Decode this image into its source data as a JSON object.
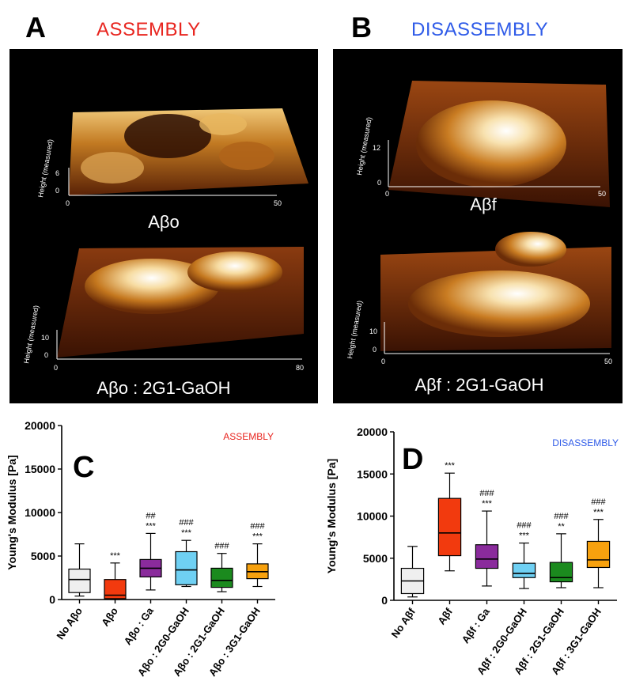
{
  "panels": {
    "A": {
      "letter": "A",
      "title": "ASSEMBLY",
      "title_color": "#e8251f"
    },
    "B": {
      "letter": "B",
      "title": "DISASSEMBLY",
      "title_color": "#2f5be8"
    }
  },
  "afm_images": [
    {
      "id": "a-top",
      "label": "Aβo",
      "height_axis_label": "Height (measured)",
      "height_ticks": [
        "0",
        "6"
      ],
      "x_ticks": [
        "0",
        "50"
      ]
    },
    {
      "id": "a-bottom",
      "label": "Aβo : 2G1-GaOH",
      "height_axis_label": "Height (measured)",
      "height_ticks": [
        "0",
        "10"
      ],
      "x_ticks": [
        "0",
        "80"
      ]
    },
    {
      "id": "b-top",
      "label": "Aβf",
      "height_axis_label": "Height (measured)",
      "height_ticks": [
        "0",
        "12"
      ],
      "x_ticks": [
        "0",
        "50"
      ]
    },
    {
      "id": "b-bottom",
      "label": "Aβf : 2G1-GaOH",
      "height_axis_label": "Height (measured)",
      "height_ticks": [
        "0",
        "10"
      ],
      "x_ticks": [
        "0",
        "50"
      ]
    }
  ],
  "chart_data": [
    {
      "type": "boxplot",
      "panel_letter": "C",
      "tag": "ASSEMBLY",
      "tag_color": "#e8251f",
      "ylabel": "Young's Modulus [Pa]",
      "ylim": [
        0,
        20000
      ],
      "yticks": [
        0,
        5000,
        10000,
        15000,
        20000
      ],
      "categories": [
        "No Aβo",
        "Aβo",
        "Aβo : Ga",
        "Aβo : 2G0-GaOH",
        "Aβo : 2G1-GaOH",
        "Aβo : 3G1-GaOH"
      ],
      "colors": [
        "#efefef",
        "#f23a0e",
        "#8a2b9c",
        "#6fd0f3",
        "#1b8a1e",
        "#f7a10e"
      ],
      "boxes": [
        {
          "min": 400,
          "q1": 800,
          "median": 2300,
          "q3": 3500,
          "max": 6400
        },
        {
          "min": 0,
          "q1": 100,
          "median": 500,
          "q3": 2300,
          "max": 4200
        },
        {
          "min": 1100,
          "q1": 2600,
          "median": 3600,
          "q3": 4600,
          "max": 7600
        },
        {
          "min": 1500,
          "q1": 1700,
          "median": 3400,
          "q3": 5500,
          "max": 6800
        },
        {
          "min": 900,
          "q1": 1400,
          "median": 2200,
          "q3": 3600,
          "max": 5300
        },
        {
          "min": 1500,
          "q1": 2400,
          "median": 3200,
          "q3": 4100,
          "max": 6400
        }
      ],
      "annotations": [
        {
          "index": 1,
          "lines": [
            "***"
          ]
        },
        {
          "index": 2,
          "lines": [
            "##",
            "***"
          ]
        },
        {
          "index": 3,
          "lines": [
            "###",
            "***"
          ]
        },
        {
          "index": 4,
          "lines": [
            "###"
          ]
        },
        {
          "index": 5,
          "lines": [
            "###",
            "***"
          ]
        }
      ]
    },
    {
      "type": "boxplot",
      "panel_letter": "D",
      "tag": "DISASSEMBLY",
      "tag_color": "#2f5be8",
      "ylabel": "Young's Modulus [Pa]",
      "ylim": [
        0,
        20000
      ],
      "yticks": [
        0,
        5000,
        10000,
        15000,
        20000
      ],
      "categories": [
        "No Aβf",
        "Aβf",
        "Aβf : Ga",
        "Aβf : 2G0-GaOH",
        "Aβf : 2G1-GaOH",
        "Aβf : 3G1-GaOH"
      ],
      "colors": [
        "#efefef",
        "#f23a0e",
        "#8a2b9c",
        "#6fd0f3",
        "#1b8a1e",
        "#f7a10e"
      ],
      "boxes": [
        {
          "min": 400,
          "q1": 800,
          "median": 2300,
          "q3": 3800,
          "max": 6400
        },
        {
          "min": 3500,
          "q1": 5300,
          "median": 8000,
          "q3": 12100,
          "max": 15100
        },
        {
          "min": 1700,
          "q1": 3800,
          "median": 4900,
          "q3": 6600,
          "max": 10600
        },
        {
          "min": 1400,
          "q1": 2700,
          "median": 3200,
          "q3": 4400,
          "max": 6800
        },
        {
          "min": 1500,
          "q1": 2200,
          "median": 2700,
          "q3": 4500,
          "max": 7900
        },
        {
          "min": 1500,
          "q1": 3900,
          "median": 4800,
          "q3": 7000,
          "max": 9600
        }
      ],
      "annotations": [
        {
          "index": 1,
          "lines": [
            "***"
          ]
        },
        {
          "index": 2,
          "lines": [
            "###",
            "***"
          ]
        },
        {
          "index": 3,
          "lines": [
            "###",
            "***"
          ]
        },
        {
          "index": 4,
          "lines": [
            "###",
            "**"
          ]
        },
        {
          "index": 5,
          "lines": [
            "###",
            "***"
          ]
        }
      ]
    }
  ]
}
